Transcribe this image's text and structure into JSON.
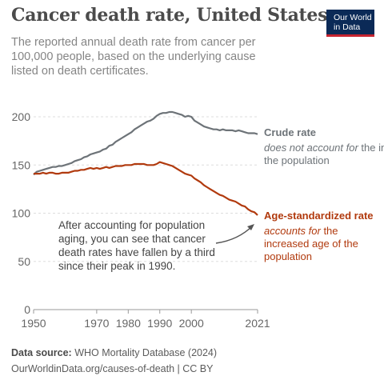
{
  "header": {
    "title": "Cancer death rate, United States",
    "subtitle": "The reported annual death rate from cancer per 100,000 people, based on the underlying cause listed on death certificates."
  },
  "logo": {
    "line1": "Our World",
    "line2": "in Data"
  },
  "footer": {
    "source_label": "Data source:",
    "source_text": " WHO Mortality Database (2024)",
    "url": "OurWorldinData.org/causes-of-death | CC BY"
  },
  "chart_data": {
    "type": "line",
    "xlim": [
      1950,
      2021
    ],
    "ylim": [
      0,
      200
    ],
    "x_ticks": [
      {
        "value": 1950,
        "label": "1950"
      },
      {
        "value": 1970,
        "label": "1970"
      },
      {
        "value": 1980,
        "label": "1980"
      },
      {
        "value": 1990,
        "label": "1990"
      },
      {
        "value": 2000,
        "label": "2000"
      },
      {
        "value": 2021,
        "label": "2021"
      }
    ],
    "y_ticks": [
      {
        "value": 0,
        "label": "0"
      },
      {
        "value": 50,
        "label": "50"
      },
      {
        "value": 100,
        "label": "100"
      },
      {
        "value": 150,
        "label": "150"
      },
      {
        "value": 200,
        "label": "200"
      }
    ],
    "grid": "horizontal-dashed",
    "series": [
      {
        "name": "Crude rate",
        "note": "does not account for",
        "note_rest": [
          " the increased age of",
          "the population"
        ],
        "color": "#6d7378",
        "points": [
          [
            1950,
            140
          ],
          [
            1951,
            143
          ],
          [
            1952,
            144
          ],
          [
            1953,
            145
          ],
          [
            1954,
            146
          ],
          [
            1955,
            147
          ],
          [
            1956,
            148
          ],
          [
            1957,
            148
          ],
          [
            1958,
            149
          ],
          [
            1959,
            149
          ],
          [
            1960,
            150
          ],
          [
            1961,
            151
          ],
          [
            1962,
            152
          ],
          [
            1963,
            154
          ],
          [
            1964,
            155
          ],
          [
            1965,
            156
          ],
          [
            1966,
            158
          ],
          [
            1967,
            159
          ],
          [
            1968,
            161
          ],
          [
            1969,
            162
          ],
          [
            1970,
            163
          ],
          [
            1971,
            164
          ],
          [
            1972,
            166
          ],
          [
            1973,
            167
          ],
          [
            1974,
            170
          ],
          [
            1975,
            171
          ],
          [
            1976,
            174
          ],
          [
            1977,
            176
          ],
          [
            1978,
            178
          ],
          [
            1979,
            180
          ],
          [
            1980,
            182
          ],
          [
            1981,
            184
          ],
          [
            1982,
            187
          ],
          [
            1983,
            189
          ],
          [
            1984,
            191
          ],
          [
            1985,
            193
          ],
          [
            1986,
            195
          ],
          [
            1987,
            196
          ],
          [
            1988,
            198
          ],
          [
            1989,
            201
          ],
          [
            1990,
            203
          ],
          [
            1991,
            204
          ],
          [
            1992,
            204
          ],
          [
            1993,
            205
          ],
          [
            1994,
            205
          ],
          [
            1995,
            204
          ],
          [
            1996,
            203
          ],
          [
            1997,
            202
          ],
          [
            1998,
            200
          ],
          [
            1999,
            201
          ],
          [
            2000,
            200
          ],
          [
            2001,
            196
          ],
          [
            2002,
            194
          ],
          [
            2003,
            192
          ],
          [
            2004,
            190
          ],
          [
            2005,
            189
          ],
          [
            2006,
            188
          ],
          [
            2007,
            187
          ],
          [
            2008,
            187
          ],
          [
            2009,
            186
          ],
          [
            2010,
            187
          ],
          [
            2011,
            186
          ],
          [
            2012,
            186
          ],
          [
            2013,
            186
          ],
          [
            2014,
            185
          ],
          [
            2015,
            186
          ],
          [
            2016,
            185
          ],
          [
            2017,
            184
          ],
          [
            2018,
            183
          ],
          [
            2019,
            183
          ],
          [
            2020,
            183
          ],
          [
            2021,
            182
          ]
        ]
      },
      {
        "name": "Age-standardized rate",
        "note": "accounts for",
        "note_rest": [
          " the",
          "increased age of the",
          "population"
        ],
        "color": "#b13a0e",
        "points": [
          [
            1950,
            141
          ],
          [
            1951,
            141
          ],
          [
            1952,
            141
          ],
          [
            1953,
            142
          ],
          [
            1954,
            141
          ],
          [
            1955,
            142
          ],
          [
            1956,
            142
          ],
          [
            1957,
            141
          ],
          [
            1958,
            141
          ],
          [
            1959,
            142
          ],
          [
            1960,
            142
          ],
          [
            1961,
            142
          ],
          [
            1962,
            143
          ],
          [
            1963,
            144
          ],
          [
            1964,
            144
          ],
          [
            1965,
            145
          ],
          [
            1966,
            145
          ],
          [
            1967,
            146
          ],
          [
            1968,
            147
          ],
          [
            1969,
            146
          ],
          [
            1970,
            147
          ],
          [
            1971,
            146
          ],
          [
            1972,
            147
          ],
          [
            1973,
            148
          ],
          [
            1974,
            147
          ],
          [
            1975,
            148
          ],
          [
            1976,
            149
          ],
          [
            1977,
            149
          ],
          [
            1978,
            149
          ],
          [
            1979,
            150
          ],
          [
            1980,
            150
          ],
          [
            1981,
            150
          ],
          [
            1982,
            151
          ],
          [
            1983,
            151
          ],
          [
            1984,
            151
          ],
          [
            1985,
            151
          ],
          [
            1986,
            150
          ],
          [
            1987,
            150
          ],
          [
            1988,
            150
          ],
          [
            1989,
            151
          ],
          [
            1990,
            153
          ],
          [
            1991,
            152
          ],
          [
            1992,
            151
          ],
          [
            1993,
            150
          ],
          [
            1994,
            149
          ],
          [
            1995,
            147
          ],
          [
            1996,
            145
          ],
          [
            1997,
            143
          ],
          [
            1998,
            141
          ],
          [
            1999,
            140
          ],
          [
            2000,
            139
          ],
          [
            2001,
            136
          ],
          [
            2002,
            134
          ],
          [
            2003,
            132
          ],
          [
            2004,
            129
          ],
          [
            2005,
            127
          ],
          [
            2006,
            125
          ],
          [
            2007,
            123
          ],
          [
            2008,
            121
          ],
          [
            2009,
            119
          ],
          [
            2010,
            118
          ],
          [
            2011,
            116
          ],
          [
            2012,
            114
          ],
          [
            2013,
            113
          ],
          [
            2014,
            112
          ],
          [
            2015,
            110
          ],
          [
            2016,
            108
          ],
          [
            2017,
            107
          ],
          [
            2018,
            104
          ],
          [
            2019,
            102
          ],
          [
            2020,
            101
          ],
          [
            2021,
            98
          ]
        ]
      }
    ],
    "annotation": {
      "lines": [
        "After accounting for population",
        "aging, you can see that cancer",
        "death rates have fallen by a third",
        "since their peak in 1990."
      ]
    }
  }
}
